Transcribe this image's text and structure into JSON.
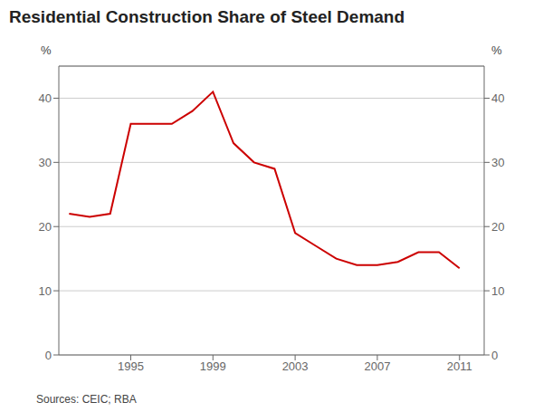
{
  "chart_data": {
    "type": "line",
    "title": "Residential Construction Share of Steel Demand",
    "x": [
      1992,
      1993,
      1994,
      1995,
      1996,
      1997,
      1998,
      1999,
      2000,
      2001,
      2002,
      2003,
      2004,
      2005,
      2006,
      2007,
      2008,
      2009,
      2010,
      2011
    ],
    "values": [
      22.0,
      21.5,
      22.0,
      36.0,
      36.0,
      36.0,
      38.0,
      41.0,
      33.0,
      30.0,
      29.0,
      19.0,
      17.0,
      15.0,
      14.0,
      14.0,
      14.5,
      16.0,
      16.0,
      13.5
    ],
    "color": "#cc0000",
    "ylabel": "%",
    "y2label": "%",
    "xlim": [
      1991.5,
      2012.2
    ],
    "xticks": [
      1995,
      1999,
      2003,
      2007,
      2011
    ],
    "ylim": [
      0,
      45
    ],
    "yticks": [
      0,
      10,
      20,
      30,
      40
    ],
    "y2lim": [
      0,
      45
    ],
    "y2ticks": [
      0,
      10,
      20,
      30,
      40
    ],
    "grid": true,
    "annotations": [
      "Sources: CEIC; RBA"
    ]
  }
}
